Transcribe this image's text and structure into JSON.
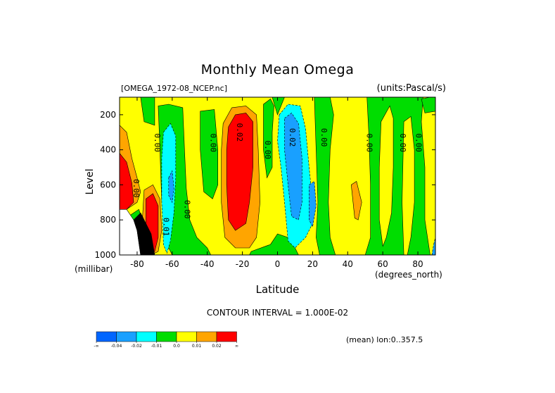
{
  "chart_data": {
    "type": "heatmap",
    "title": "Monthly Mean Omega",
    "dataset_label": "[OMEGA_1972-08_NCEP.nc]",
    "units_label": "(units:Pascal/s)",
    "xlabel": "Latitude",
    "x_unit": "(degrees_north)",
    "ylabel": "Level",
    "y_unit": "(millibar)",
    "xlim": [
      -90,
      90
    ],
    "ylim": [
      1000,
      100
    ],
    "x_ticks": [
      -80,
      -60,
      -40,
      -20,
      0,
      20,
      40,
      60,
      80
    ],
    "y_ticks": [
      200,
      400,
      600,
      800,
      1000
    ],
    "contour_interval_label": "CONTOUR INTERVAL = 1.000E-02",
    "mean_note": "(mean) lon:0..357.5",
    "levels": [
      -0.04,
      -0.02,
      -0.01,
      0.0,
      0.01,
      0.02
    ],
    "colorbar": {
      "colors": [
        "#0066ff",
        "#19a0ff",
        "#00ffff",
        "#00dd00",
        "#ffff00",
        "#ffa500",
        "#ff0000"
      ],
      "labels": [
        "-∞",
        "-0.04",
        "-0.02",
        "-0.01",
        "0.0",
        "0.01",
        "0.02",
        "∞"
      ]
    },
    "contour_labels": [
      {
        "text": "0.00",
        "x": -82,
        "y": 620
      },
      {
        "text": "0.00",
        "x": -70,
        "y": 360
      },
      {
        "text": "0.01",
        "x": -65,
        "y": 840
      },
      {
        "text": "0.00",
        "x": -53,
        "y": 740
      },
      {
        "text": "0.00",
        "x": -38,
        "y": 360
      },
      {
        "text": "0.02",
        "x": -23,
        "y": 300
      },
      {
        "text": "0.00",
        "x": -7,
        "y": 400
      },
      {
        "text": "0.02",
        "x": 7,
        "y": 330
      },
      {
        "text": "0.00",
        "x": 25,
        "y": 330
      },
      {
        "text": "0.00",
        "x": 51,
        "y": 360
      },
      {
        "text": "0.00",
        "x": 70,
        "y": 360
      },
      {
        "text": "0.00",
        "x": 79,
        "y": 360
      }
    ],
    "regions": [
      {
        "value_class": "positive",
        "color": "#ffff00",
        "x": [
          -90,
          90
        ],
        "y": [
          100,
          1000
        ]
      },
      {
        "value_class": "orange",
        "color": "#ffa500",
        "points": [
          [
            -90,
            260
          ],
          [
            -86,
            300
          ],
          [
            -83,
            450
          ],
          [
            -80,
            560
          ],
          [
            -78,
            640
          ],
          [
            -80,
            700
          ],
          [
            -86,
            740
          ],
          [
            -90,
            760
          ]
        ]
      },
      {
        "value_class": "red",
        "color": "#ff0000",
        "points": [
          [
            -90,
            420
          ],
          [
            -86,
            470
          ],
          [
            -83,
            590
          ],
          [
            -82,
            700
          ],
          [
            -86,
            740
          ],
          [
            -90,
            740
          ]
        ]
      },
      {
        "value_class": "orange",
        "color": "#ffa500",
        "points": [
          [
            -76,
            630
          ],
          [
            -71,
            600
          ],
          [
            -67,
            680
          ],
          [
            -66,
            860
          ],
          [
            -68,
            980
          ],
          [
            -72,
            1000
          ],
          [
            -76,
            960
          ],
          [
            -77,
            800
          ]
        ]
      },
      {
        "value_class": "red",
        "color": "#ff0000",
        "points": [
          [
            -75,
            680
          ],
          [
            -71,
            650
          ],
          [
            -68,
            720
          ],
          [
            -68,
            900
          ],
          [
            -70,
            980
          ],
          [
            -74,
            1000
          ],
          [
            -75,
            900
          ]
        ]
      },
      {
        "value_class": "green",
        "color": "#00dd00",
        "points": [
          [
            -85,
            780
          ],
          [
            -79,
            740
          ],
          [
            -76,
            830
          ],
          [
            -75,
            900
          ],
          [
            -76,
            1000
          ],
          [
            -84,
            1000
          ]
        ]
      },
      {
        "value_class": "green",
        "color": "#00dd00",
        "points": [
          [
            -68,
            150
          ],
          [
            -62,
            140
          ],
          [
            -54,
            160
          ],
          [
            -53,
            400
          ],
          [
            -52,
            620
          ],
          [
            -50,
            800
          ],
          [
            -46,
            900
          ],
          [
            -40,
            960
          ],
          [
            -38,
            1000
          ],
          [
            -60,
            1000
          ],
          [
            -64,
            920
          ],
          [
            -66,
            700
          ],
          [
            -67,
            400
          ]
        ]
      },
      {
        "value_class": "cyan",
        "color": "#00ffff",
        "points": [
          [
            -65,
            300
          ],
          [
            -61,
            250
          ],
          [
            -58,
            320
          ],
          [
            -58,
            560
          ],
          [
            -59,
            760
          ],
          [
            -61,
            920
          ],
          [
            -63,
            990
          ],
          [
            -65,
            940
          ],
          [
            -66,
            700
          ],
          [
            -66,
            450
          ]
        ]
      },
      {
        "value_class": "blue",
        "color": "#19a0ff",
        "points": [
          [
            -62,
            560
          ],
          [
            -60,
            520
          ],
          [
            -59,
            620
          ],
          [
            -60,
            700
          ],
          [
            -62,
            660
          ]
        ]
      },
      {
        "value_class": "green",
        "color": "#00dd00",
        "points": [
          [
            -78,
            100
          ],
          [
            -70,
            100
          ],
          [
            -70,
            260
          ],
          [
            -76,
            240
          ]
        ]
      },
      {
        "value_class": "green",
        "color": "#00dd00",
        "points": [
          [
            -44,
            180
          ],
          [
            -36,
            170
          ],
          [
            -34,
            400
          ],
          [
            -34,
            600
          ],
          [
            -37,
            680
          ],
          [
            -42,
            640
          ],
          [
            -44,
            400
          ]
        ]
      },
      {
        "value_class": "orange",
        "color": "#ffa500",
        "points": [
          [
            -31,
            250
          ],
          [
            -26,
            160
          ],
          [
            -18,
            150
          ],
          [
            -12,
            200
          ],
          [
            -11,
            400
          ],
          [
            -10,
            700
          ],
          [
            -12,
            900
          ],
          [
            -16,
            960
          ],
          [
            -24,
            960
          ],
          [
            -30,
            900
          ],
          [
            -32,
            700
          ],
          [
            -32,
            400
          ]
        ]
      },
      {
        "value_class": "red",
        "color": "#ff0000",
        "points": [
          [
            -28,
            270
          ],
          [
            -24,
            200
          ],
          [
            -18,
            190
          ],
          [
            -14,
            240
          ],
          [
            -14,
            500
          ],
          [
            -16,
            700
          ],
          [
            -18,
            820
          ],
          [
            -24,
            860
          ],
          [
            -28,
            800
          ],
          [
            -29,
            600
          ],
          [
            -29,
            400
          ]
        ]
      },
      {
        "value_class": "green",
        "color": "#00dd00",
        "points": [
          [
            -15,
            980
          ],
          [
            -4,
            940
          ],
          [
            0,
            880
          ],
          [
            6,
            900
          ],
          [
            10,
            960
          ],
          [
            12,
            1000
          ],
          [
            -16,
            1000
          ]
        ]
      },
      {
        "value_class": "green",
        "color": "#00dd00",
        "points": [
          [
            -8,
            140
          ],
          [
            -4,
            110
          ],
          [
            -2,
            150
          ],
          [
            -3,
            300
          ],
          [
            -3,
            500
          ],
          [
            -6,
            560
          ],
          [
            -8,
            400
          ],
          [
            -8,
            250
          ]
        ]
      },
      {
        "value_class": "green",
        "color": "#00dd00",
        "points": [
          [
            -3,
            100
          ],
          [
            4,
            100
          ],
          [
            0,
            200
          ]
        ]
      },
      {
        "value_class": "cyan",
        "color": "#00ffff",
        "points": [
          [
            1,
            200
          ],
          [
            6,
            140
          ],
          [
            13,
            150
          ],
          [
            16,
            280
          ],
          [
            18,
            500
          ],
          [
            20,
            700
          ],
          [
            20,
            820
          ],
          [
            16,
            900
          ],
          [
            10,
            960
          ],
          [
            6,
            920
          ],
          [
            4,
            700
          ],
          [
            2,
            500
          ],
          [
            0,
            350
          ]
        ]
      },
      {
        "value_class": "blue",
        "color": "#19a0ff",
        "points": [
          [
            4,
            220
          ],
          [
            8,
            190
          ],
          [
            12,
            250
          ],
          [
            14,
            450
          ],
          [
            14,
            700
          ],
          [
            12,
            800
          ],
          [
            8,
            780
          ],
          [
            6,
            600
          ],
          [
            4,
            400
          ]
        ]
      },
      {
        "value_class": "blue",
        "color": "#19a0ff",
        "points": [
          [
            18,
            600
          ],
          [
            21,
            580
          ],
          [
            22,
            720
          ],
          [
            20,
            840
          ],
          [
            18,
            800
          ]
        ]
      },
      {
        "value_class": "green",
        "color": "#00dd00",
        "points": [
          [
            21,
            100
          ],
          [
            30,
            100
          ],
          [
            32,
            200
          ],
          [
            30,
            400
          ],
          [
            29,
            700
          ],
          [
            30,
            900
          ],
          [
            33,
            1000
          ],
          [
            24,
            1000
          ],
          [
            22,
            900
          ],
          [
            23,
            700
          ],
          [
            22,
            400
          ]
        ]
      },
      {
        "value_class": "orange",
        "color": "#ffa500",
        "points": [
          [
            42,
            600
          ],
          [
            45,
            580
          ],
          [
            48,
            700
          ],
          [
            46,
            800
          ],
          [
            44,
            790
          ]
        ]
      },
      {
        "value_class": "green",
        "color": "#00dd00",
        "points": [
          [
            51,
            100
          ],
          [
            90,
            100
          ],
          [
            90,
            1000
          ],
          [
            50,
            1000
          ],
          [
            53,
            900
          ],
          [
            53,
            600
          ],
          [
            52,
            300
          ]
        ]
      },
      {
        "value_class": "positive",
        "color": "#ffff00",
        "points": [
          [
            59,
            240
          ],
          [
            64,
            150
          ],
          [
            66,
            220
          ],
          [
            66,
            500
          ],
          [
            65,
            760
          ],
          [
            62,
            900
          ],
          [
            60,
            950
          ],
          [
            58,
            800
          ],
          [
            58,
            500
          ]
        ]
      },
      {
        "value_class": "positive",
        "color": "#ffff00",
        "points": [
          [
            72,
            240
          ],
          [
            76,
            210
          ],
          [
            78,
            400
          ],
          [
            78,
            700
          ],
          [
            76,
            900
          ],
          [
            74,
            1000
          ],
          [
            72,
            1000
          ],
          [
            71,
            700
          ]
        ]
      },
      {
        "value_class": "positive",
        "color": "#ffff00",
        "points": [
          [
            83,
            100
          ],
          [
            90,
            100
          ],
          [
            90,
            1000
          ],
          [
            87,
            1000
          ],
          [
            84,
            800
          ],
          [
            84,
            500
          ],
          [
            82,
            240
          ]
        ]
      },
      {
        "value_class": "green",
        "color": "#00dd00",
        "points": [
          [
            82,
            110
          ],
          [
            87,
            100
          ],
          [
            90,
            100
          ],
          [
            90,
            180
          ],
          [
            84,
            190
          ]
        ]
      },
      {
        "value_class": "white",
        "color": "#ffffff",
        "points": [
          [
            -90,
            740
          ],
          [
            -86,
            740
          ],
          [
            -82,
            800
          ],
          [
            -80,
            860
          ],
          [
            -78,
            1000
          ],
          [
            -90,
            1000
          ]
        ]
      },
      {
        "value_class": "black",
        "color": "#000000",
        "points": [
          [
            -82,
            800
          ],
          [
            -78,
            760
          ],
          [
            -72,
            880
          ],
          [
            -70,
            1000
          ],
          [
            -78,
            1000
          ],
          [
            -80,
            860
          ]
        ]
      },
      {
        "value_class": "blue",
        "color": "#19a0ff",
        "points": [
          [
            89,
            940
          ],
          [
            90,
            900
          ],
          [
            90,
            1000
          ],
          [
            88,
            1000
          ]
        ]
      }
    ]
  }
}
